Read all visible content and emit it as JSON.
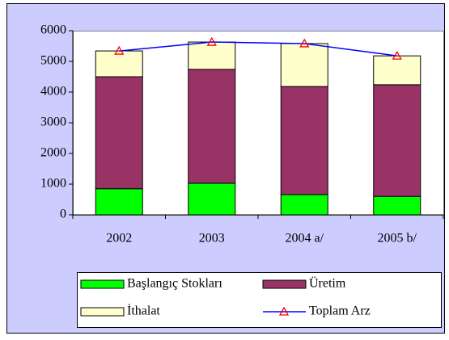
{
  "chart_data": {
    "type": "bar",
    "stacked": true,
    "categories": [
      "2002",
      "2003",
      "2004 a/",
      "2005 b/"
    ],
    "series": [
      {
        "name": "Başlangıç Stokları",
        "color": "#00ff00",
        "values": [
          850,
          1030,
          660,
          600
        ]
      },
      {
        "name": "Üretim",
        "color": "#993366",
        "values": [
          3650,
          3710,
          3520,
          3640
        ]
      },
      {
        "name": "İthalat",
        "color": "#ffffcc",
        "values": [
          840,
          890,
          1400,
          940
        ]
      },
      {
        "name": "Toplam Arz",
        "type": "line",
        "color": "#0000ff",
        "marker": "triangle",
        "marker_color": "#ff0000",
        "values": [
          5340,
          5630,
          5580,
          5180
        ]
      }
    ],
    "ylim": [
      0,
      6000
    ],
    "yticks": [
      0,
      1000,
      2000,
      3000,
      4000,
      5000,
      6000
    ],
    "grid": false,
    "legend": "bottom"
  }
}
